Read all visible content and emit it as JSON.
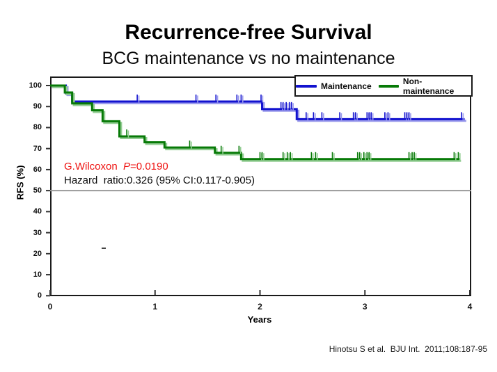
{
  "slide": {
    "title": "Recurrence-free Survival",
    "subtitle": "BCG maintenance vs no maintenance",
    "citation": "Hinotsu S et al.  BJU Int.  2011;108:187-95"
  },
  "stats": {
    "test_name": "G.Wilcoxon",
    "p_symbol": "P",
    "p_value_text": "=0.0190",
    "hazard_text": "Hazard  ratio:0.326 (95% CI:0.117-0.905)",
    "stat_red": "#ee1210"
  },
  "colors": {
    "maintenance_blue": "#1212cf",
    "maintenance_blue_shadow": "#9a9aec",
    "nonmaintenance_green": "#077a07",
    "nonmaintenance_green_shadow": "#93cd93",
    "reference_gray": "#999999",
    "frame_black": "#1a1a1a"
  },
  "chart_data": {
    "type": "line",
    "subtype": "kaplan-meier-step",
    "title": "Recurrence-free Survival",
    "xlabel": "Years",
    "ylabel": "RFS (%)",
    "xlim": [
      0,
      4
    ],
    "ylim": [
      0,
      100
    ],
    "x_ticks": [
      0,
      1,
      2,
      3,
      4
    ],
    "y_ticks": [
      100,
      90,
      80,
      70,
      60,
      50,
      40,
      30,
      20,
      10,
      0
    ],
    "grid": false,
    "reference_line_y": 50,
    "reference_line_color": "#999999",
    "legend": {
      "position": "top-right",
      "entries": [
        {
          "label": "Maintenance",
          "color": "#1212cf"
        },
        {
          "label": "Non-maintenance",
          "color": "#077a07"
        }
      ]
    },
    "series": [
      {
        "name": "Maintenance",
        "color": "#1212cf",
        "shadow": "#9a9aec",
        "end_year": 3.95,
        "steps": [
          [
            0,
            100
          ],
          [
            0.15,
            96.3
          ],
          [
            0.21,
            92.4
          ],
          [
            2.02,
            88.8
          ],
          [
            2.35,
            84.0
          ]
        ],
        "censor_ticks": [
          0.83,
          1.39,
          1.58,
          1.78,
          1.82,
          2.01,
          2.2,
          2.22,
          2.25,
          2.28,
          2.3,
          2.44,
          2.51,
          2.59,
          2.76,
          2.89,
          2.91,
          3.02,
          3.04,
          3.06,
          3.19,
          3.22,
          3.38,
          3.4,
          3.42,
          3.92
        ]
      },
      {
        "name": "Non-maintenance",
        "color": "#077a07",
        "shadow": "#93cd93",
        "end_year": 3.9,
        "steps": [
          [
            0,
            100
          ],
          [
            0.14,
            96.7
          ],
          [
            0.21,
            91.5
          ],
          [
            0.4,
            88.2
          ],
          [
            0.5,
            83.0
          ],
          [
            0.66,
            75.8
          ],
          [
            0.9,
            73.0
          ],
          [
            1.09,
            70.5
          ],
          [
            1.57,
            68.0
          ],
          [
            1.82,
            65.0
          ]
        ],
        "censor_ticks": [
          0.73,
          1.33,
          1.63,
          1.8,
          2.0,
          2.02,
          2.22,
          2.26,
          2.29,
          2.49,
          2.53,
          2.69,
          2.93,
          2.95,
          2.99,
          3.02,
          3.04,
          3.42,
          3.45,
          3.47,
          3.85,
          3.89
        ]
      }
    ]
  }
}
